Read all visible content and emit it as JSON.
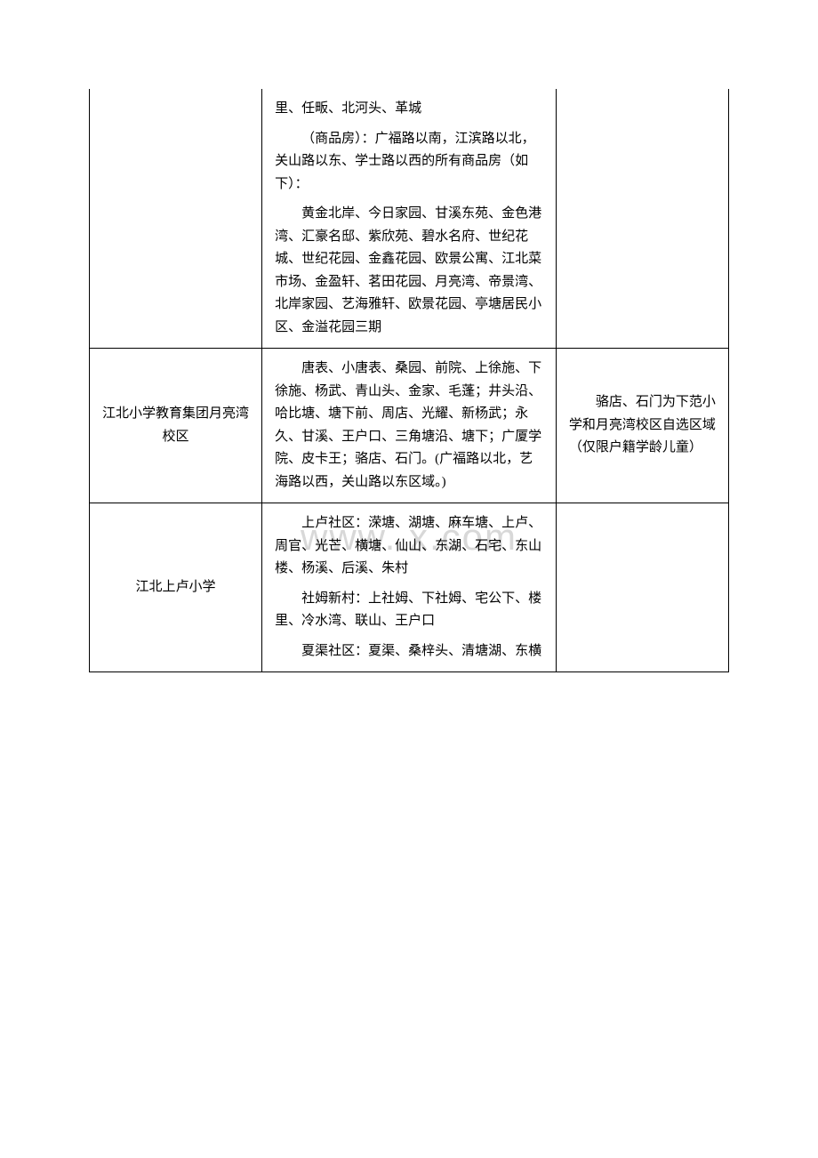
{
  "watermark": "www.        x.com",
  "table": {
    "border_color": "#000000",
    "background_color": "#ffffff",
    "font_size": 15,
    "line_height": 1.7,
    "rows": [
      {
        "school": "",
        "area_paras": [
          "里、任畈、北河头、革城",
          "（商品房）：广福路以南，江滨路以北，关山路以东、学士路以西的所有商品房（如下）：",
          "黄金北岸、今日家园、甘溪东苑、金色港湾、汇豪名邸、紫欣苑、碧水名府、世纪花城、世纪花园、金鑫花园、欧景公寓、江北菜市场、金盈轩、茗田花园、月亮湾、帝景湾、北岸家园、艺海雅轩、欧景花园、亭塘居民小区、金溢花园三期"
        ],
        "note": "",
        "continuation": true
      },
      {
        "school": "江北小学教育集团月亮湾校区",
        "area_paras": [
          "唐表、小唐表、桑园、前院、上徐施、下徐施、杨武、青山头、金家、毛蓬；井头沿、哈比塘、塘下前、周店、光耀、新杨武；永久、甘溪、王户口、三角塘沿、塘下；广厦学院、皮卡王；骆店、石门。(广福路以北，艺海路以西，关山路以东区域。)"
        ],
        "note": "骆店、石门为下范小学和月亮湾校区自选区域（仅限户籍学龄儿童）",
        "continuation": false
      },
      {
        "school": "江北上卢小学",
        "area_paras": [
          "上卢社区：溁塘、湖塘、麻车塘、上卢、周官、光芒、横塘、仙山、东湖、石宅、东山楼、杨溪、后溪、朱村",
          "社姆新村：上社姆、下社姆、宅公下、楼里、冷水湾、联山、王户口",
          "夏渠社区：夏渠、桑梓头、清塘湖、东横"
        ],
        "note": "",
        "continuation": false
      }
    ]
  }
}
